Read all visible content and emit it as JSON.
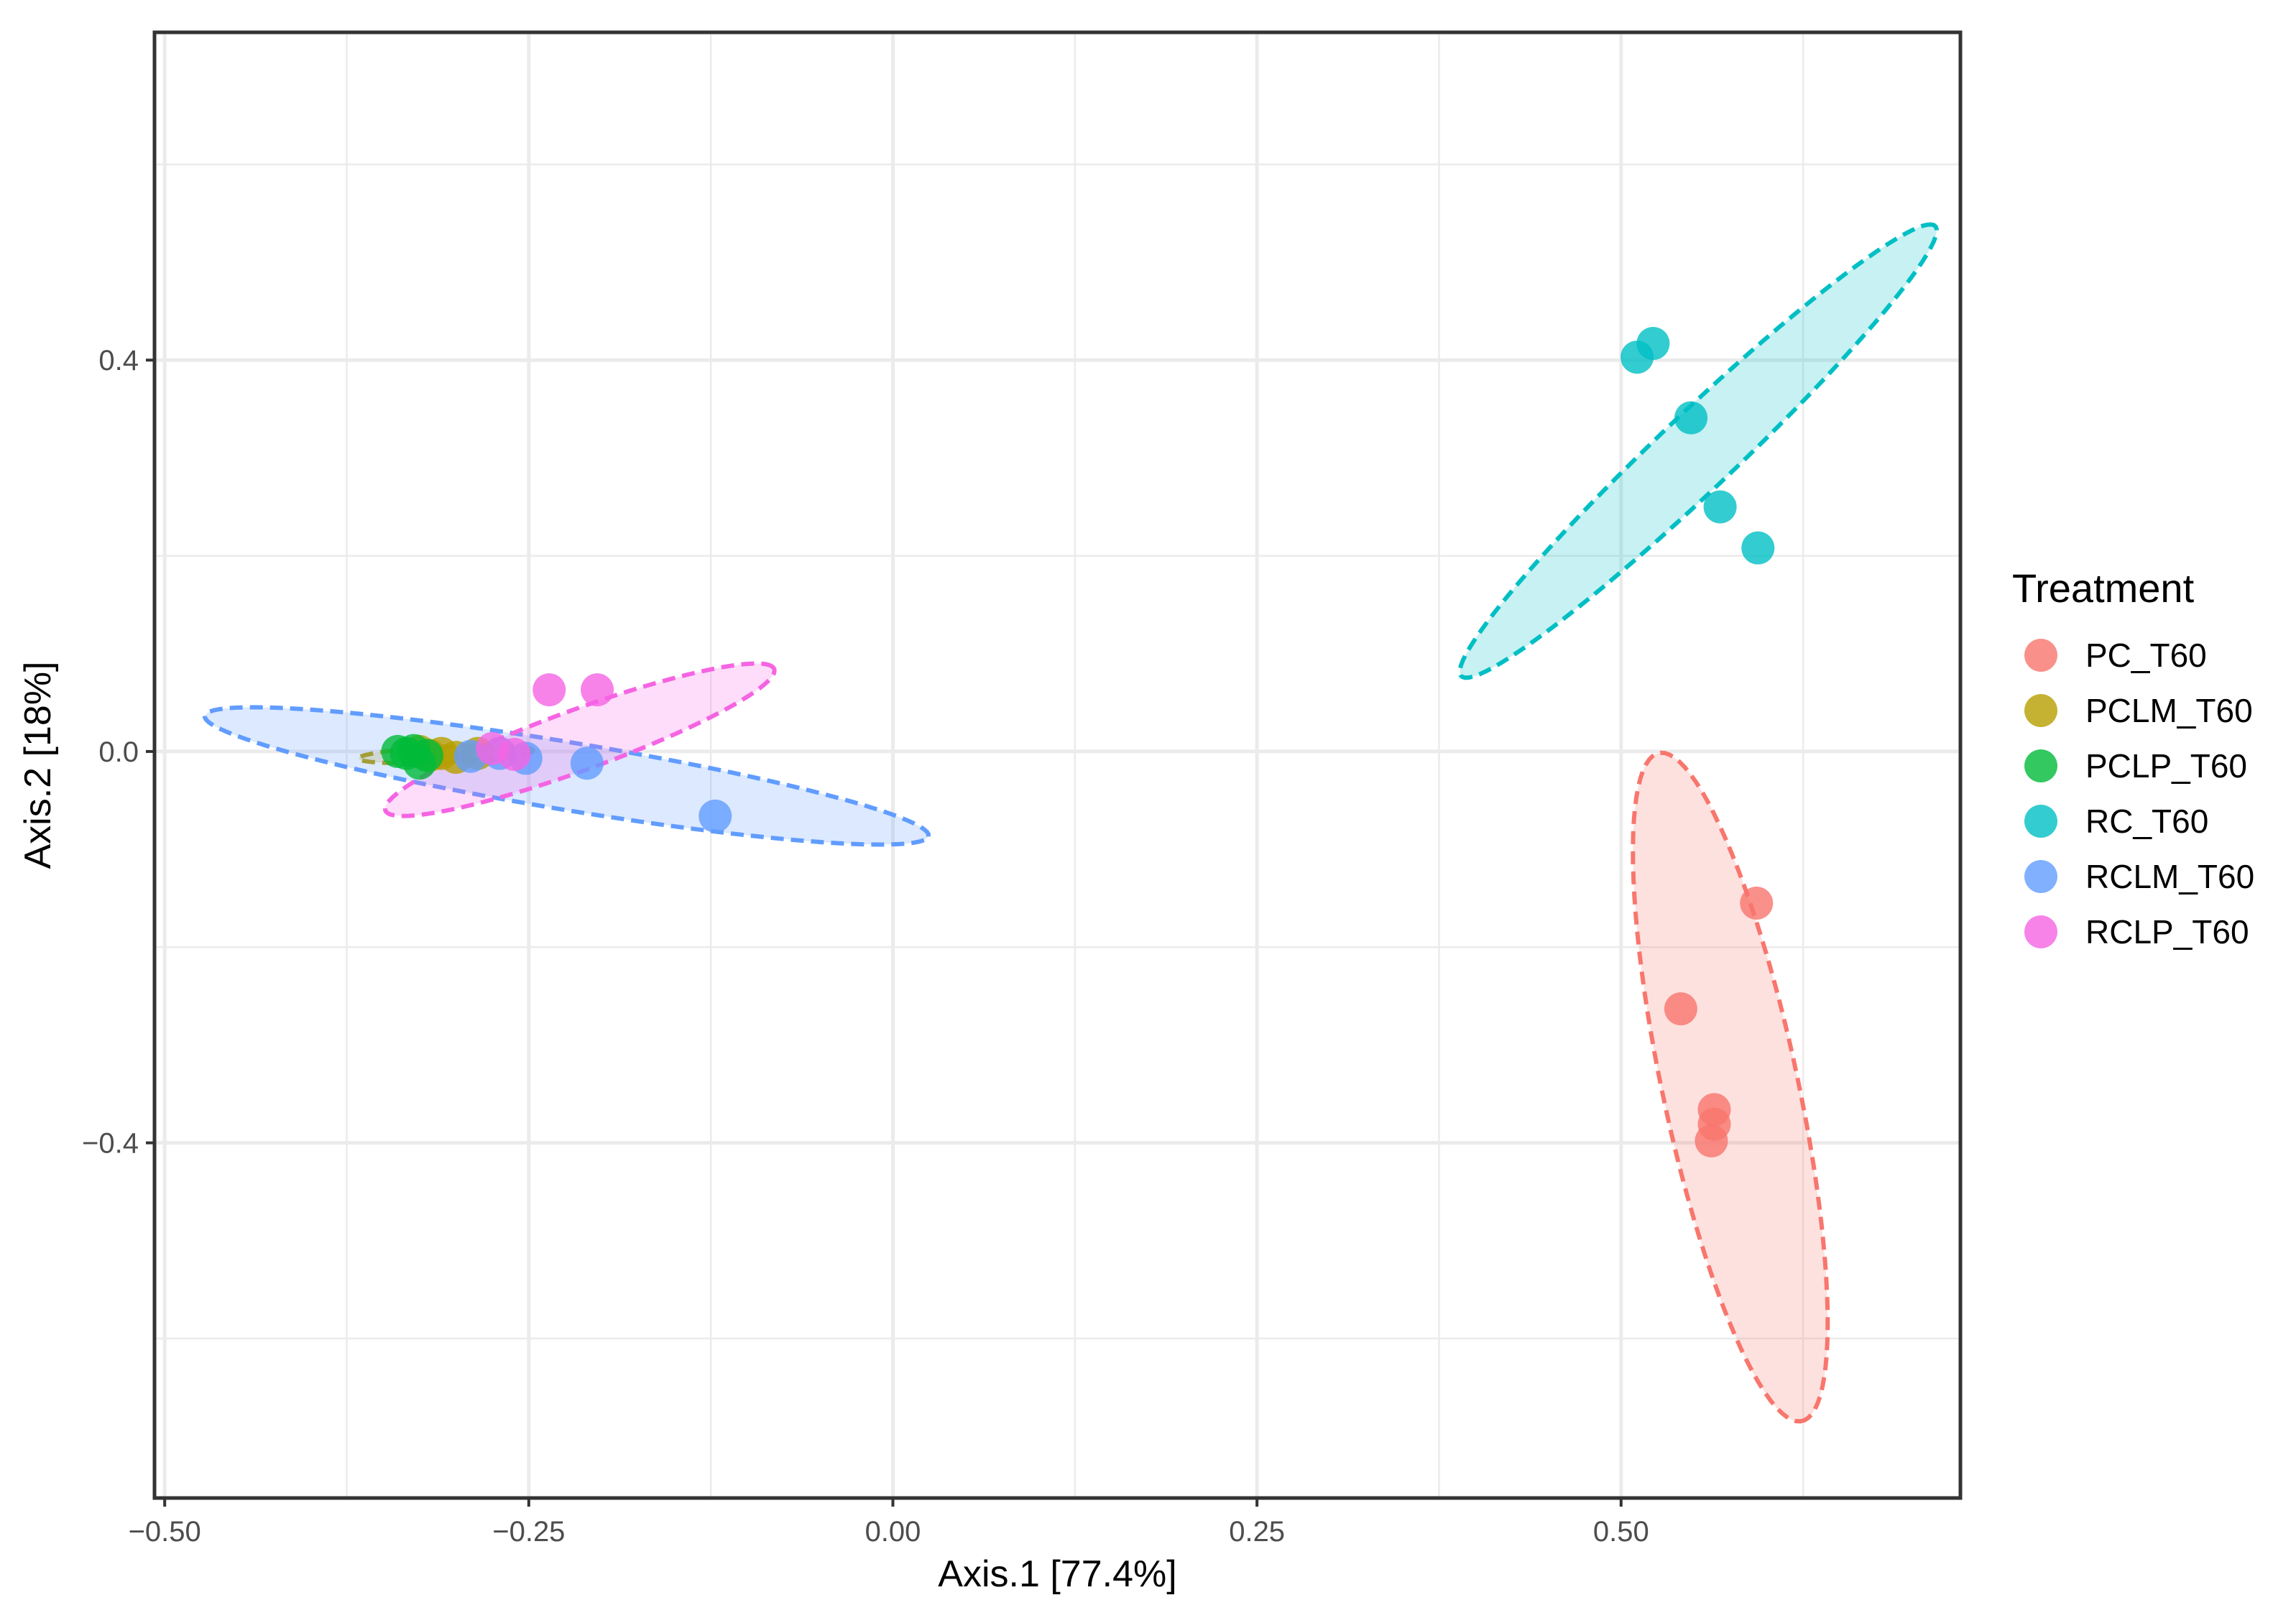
{
  "chart_data": {
    "type": "scatter",
    "title": "",
    "xlabel": "Axis.1   [77.4%]",
    "ylabel": "Axis.2   [18%]",
    "xlim": [
      -0.507,
      0.733
    ],
    "ylim": [
      -0.763,
      0.735
    ],
    "x_ticks": [
      -0.5,
      -0.25,
      0.0,
      0.25,
      0.5
    ],
    "x_tick_labels": [
      "−0.50",
      "−0.25",
      "0.00",
      "0.25",
      "0.50"
    ],
    "y_ticks": [
      -0.4,
      0.0,
      0.4
    ],
    "y_tick_labels": [
      "−0.4",
      "0.0",
      "0.4"
    ],
    "grid": true,
    "legend_title": "Treatment",
    "legend_position": "right",
    "series": [
      {
        "name": "PC_T60",
        "color": "#F8766D",
        "points": [
          [
            0.593,
            -0.155
          ],
          [
            0.541,
            -0.263
          ],
          [
            0.564,
            -0.366
          ],
          [
            0.564,
            -0.381
          ],
          [
            0.562,
            -0.398
          ]
        ],
        "ellipse": {
          "cx": 0.575,
          "cy": -0.343,
          "rx": 0.345,
          "ry": 0.047,
          "angle_deg": -82
        }
      },
      {
        "name": "PCLM_T60",
        "color": "#B79F00",
        "points": [
          [
            -0.325,
            0.0
          ],
          [
            -0.318,
            -0.004
          ],
          [
            -0.31,
            -0.002
          ],
          [
            -0.3,
            -0.006
          ],
          [
            -0.285,
            -0.002
          ]
        ],
        "ellipse": {
          "cx": -0.307,
          "cy": -0.003,
          "rx": 0.06,
          "ry": 0.008,
          "angle_deg": 4
        }
      },
      {
        "name": "PCLP_T60",
        "color": "#00BA38",
        "points": [
          [
            -0.34,
            0.0
          ],
          [
            -0.334,
            -0.002
          ],
          [
            -0.329,
            0.001
          ],
          [
            -0.325,
            -0.012
          ],
          [
            -0.32,
            -0.004
          ]
        ],
        "ellipse": null
      },
      {
        "name": "RC_T60",
        "color": "#00BFC4",
        "points": [
          [
            0.511,
            0.403
          ],
          [
            0.522,
            0.417
          ],
          [
            0.548,
            0.341
          ],
          [
            0.568,
            0.25
          ],
          [
            0.594,
            0.208
          ]
        ],
        "ellipse": {
          "cx": 0.553,
          "cy": 0.307,
          "rx": 0.282,
          "ry": 0.031,
          "angle_deg": 55
        }
      },
      {
        "name": "RCLM_T60",
        "color": "#619CFF",
        "points": [
          [
            -0.29,
            -0.005
          ],
          [
            -0.27,
            -0.002
          ],
          [
            -0.252,
            -0.007
          ],
          [
            -0.21,
            -0.012
          ],
          [
            -0.122,
            -0.066
          ]
        ],
        "ellipse": {
          "cx": -0.224,
          "cy": -0.025,
          "rx": 0.256,
          "ry": 0.034,
          "angle_deg": -14
        }
      },
      {
        "name": "RCLP_T60",
        "color": "#F564E3",
        "points": [
          [
            -0.236,
            0.063
          ],
          [
            -0.203,
            0.063
          ],
          [
            -0.275,
            0.003
          ],
          [
            -0.26,
            -0.003
          ]
        ],
        "ellipse": {
          "cx": -0.215,
          "cy": 0.012,
          "rx": 0.152,
          "ry": 0.029,
          "angle_deg": 29
        }
      }
    ]
  }
}
